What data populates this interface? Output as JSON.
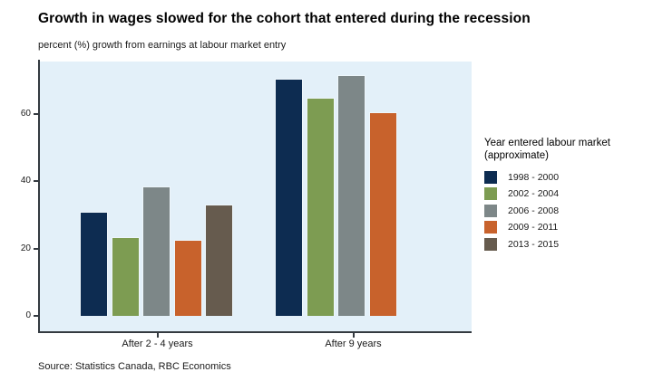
{
  "chart_data": {
    "type": "bar",
    "title": "Growth in wages slowed for the cohort that entered during the recession",
    "subtitle": "percent (%) growth from earnings at labour market entry",
    "categories": [
      "After 2 - 4 years",
      "After 9 years"
    ],
    "series": [
      {
        "name": "1998 - 2000",
        "color": "#0d2c51",
        "values": [
          31,
          70.5
        ]
      },
      {
        "name": "2002 - 2004",
        "color": "#7d9c52",
        "values": [
          23.5,
          65
        ]
      },
      {
        "name": "2006 - 2008",
        "color": "#7d8788",
        "values": [
          38.5,
          71.5
        ]
      },
      {
        "name": "2009 - 2011",
        "color": "#c8622c",
        "values": [
          22.5,
          60.5
        ]
      },
      {
        "name": "2013 - 2015",
        "color": "#665b4e",
        "values": [
          33,
          null
        ]
      }
    ],
    "xlabel": "",
    "ylabel": "",
    "y_ticks": [
      0,
      20,
      40,
      60
    ],
    "ylim": [
      0,
      75.5
    ],
    "grid": false,
    "legend_position": "right",
    "legend_title": "Year entered labour market (approximate)",
    "plot_bg_color": "#e3f0f9",
    "axis_color": "#343a40"
  },
  "legend": {
    "title_line1": "Year entered labour market",
    "title_line2": "(approximate)"
  },
  "footer": {
    "source": "Source: Statistics Canada, RBC Economics"
  }
}
